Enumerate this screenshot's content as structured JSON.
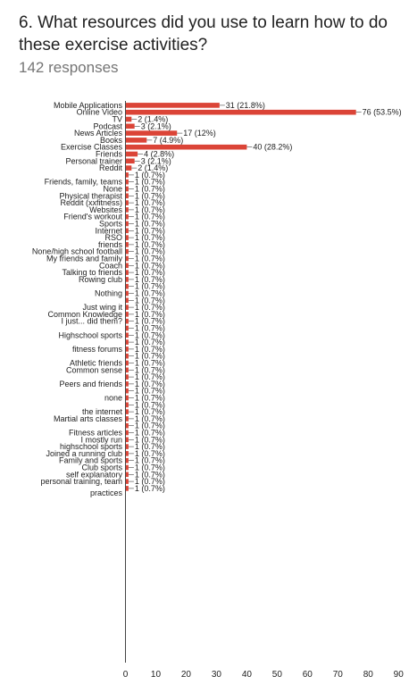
{
  "question": {
    "title": "6. What resources did you use to learn how to do these exercise activities?",
    "responses": "142 responses"
  },
  "colors": {
    "bar": "#db4437",
    "text": "#212121",
    "muted": "#757575",
    "axis": "#444444"
  },
  "chart_data": {
    "type": "bar",
    "orientation": "horizontal",
    "title": "6. What resources did you use to learn how to do these exercise activities?",
    "xlabel": "",
    "ylabel": "",
    "xlim": [
      0,
      90
    ],
    "xticks": [
      0,
      10,
      20,
      30,
      40,
      50,
      60,
      70,
      80,
      90
    ],
    "categories": [
      "Mobile Applications",
      "Online Video",
      "TV",
      "Podcast",
      "News Articles",
      "Books",
      "Exercise Classes",
      "Friends",
      "Personal trainer",
      "Reddit",
      "",
      "Friends, family, teams",
      "None",
      "Physical therapist",
      "Reddit (xxfitness)",
      "Websites",
      "Friend's workout",
      "Sports",
      "Internet",
      "RSO",
      "friends",
      "None/high school football",
      "My friends and family",
      "Coach",
      "Talking to friends",
      "Rowing club",
      "",
      "Nothing",
      "",
      "Just wing it",
      "Common Knowledge",
      "I just... did them?",
      "",
      "Highschool sports",
      "",
      "fitness forums",
      "",
      "Athletic friends",
      "Common sense",
      "",
      "Peers and friends",
      "",
      "none",
      "",
      "the internet",
      "Martial arts classes",
      "",
      "Fitness articles",
      "I mostly run",
      "highschool sports",
      "Joined a running club",
      "Family and sports",
      "Club sports",
      "self explanatory",
      "personal training, team practices",
      ""
    ],
    "values": [
      31,
      76,
      2,
      3,
      17,
      7,
      40,
      4,
      3,
      2,
      1,
      1,
      1,
      1,
      1,
      1,
      1,
      1,
      1,
      1,
      1,
      1,
      1,
      1,
      1,
      1,
      1,
      1,
      1,
      1,
      1,
      1,
      1,
      1,
      1,
      1,
      1,
      1,
      1,
      1,
      1,
      1,
      1,
      1,
      1,
      1,
      1,
      1,
      1,
      1,
      1,
      1,
      1,
      1,
      1,
      1
    ],
    "data_labels": [
      "31 (21.8%)",
      "76 (53.5%)",
      "2 (1.4%)",
      "3 (2.1%)",
      "17 (12%)",
      "7 (4.9%)",
      "40 (28.2%)",
      "4 (2.8%)",
      "3 (2.1%)",
      "2 (1.4%)",
      "1 (0.7%)",
      "1 (0.7%)",
      "1 (0.7%)",
      "1 (0.7%)",
      "1 (0.7%)",
      "1 (0.7%)",
      "1 (0.7%)",
      "1 (0.7%)",
      "1 (0.7%)",
      "1 (0.7%)",
      "1 (0.7%)",
      "1 (0.7%)",
      "1 (0.7%)",
      "1 (0.7%)",
      "1 (0.7%)",
      "1 (0.7%)",
      "1 (0.7%)",
      "1 (0.7%)",
      "1 (0.7%)",
      "1 (0.7%)",
      "1 (0.7%)",
      "1 (0.7%)",
      "1 (0.7%)",
      "1 (0.7%)",
      "1 (0.7%)",
      "1 (0.7%)",
      "1 (0.7%)",
      "1 (0.7%)",
      "1 (0.7%)",
      "1 (0.7%)",
      "1 (0.7%)",
      "1 (0.7%)",
      "1 (0.7%)",
      "1 (0.7%)",
      "1 (0.7%)",
      "1 (0.7%)",
      "1 (0.7%)",
      "1 (0.7%)",
      "1 (0.7%)",
      "1 (0.7%)",
      "1 (0.7%)",
      "1 (0.7%)",
      "1 (0.7%)",
      "1 (0.7%)",
      "1 (0.7%)",
      "1 (0.7%)"
    ],
    "grid": false,
    "legend": "none"
  }
}
